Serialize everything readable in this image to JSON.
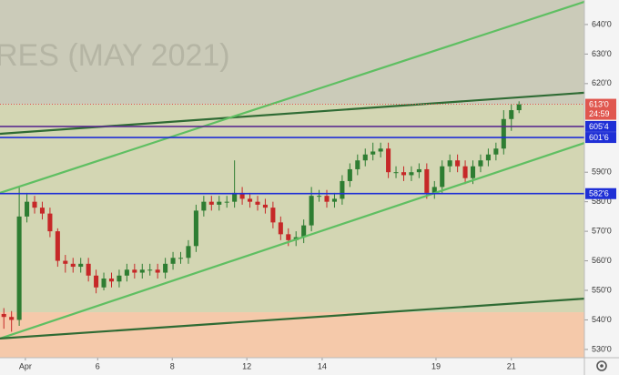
{
  "chart_data": {
    "type": "candlestick",
    "watermark": "RES (MAY 2021)",
    "xlim": [
      -0.5,
      75.5
    ],
    "xticks": [
      {
        "value": 2.8,
        "label": "Apr"
      },
      {
        "value": 12.2,
        "label": "6"
      },
      {
        "value": 21.9,
        "label": "8"
      },
      {
        "value": 31.6,
        "label": "12"
      },
      {
        "value": 41.4,
        "label": "14"
      },
      {
        "value": 56.2,
        "label": "19"
      },
      {
        "value": 66.0,
        "label": "21"
      }
    ],
    "ylim": [
      527.2,
      648.3
    ],
    "yticks": [
      {
        "value": 640,
        "label": "640'0"
      },
      {
        "value": 630,
        "label": "630'0"
      },
      {
        "value": 620,
        "label": "620'0"
      },
      {
        "value": 590,
        "label": "590'0"
      },
      {
        "value": 580,
        "label": "580'0"
      },
      {
        "value": 570,
        "label": "570'0"
      },
      {
        "value": 560,
        "label": "560'0"
      },
      {
        "value": 550,
        "label": "550'0"
      },
      {
        "value": 540,
        "label": "540'0"
      },
      {
        "value": 530,
        "label": "530'0"
      }
    ],
    "up_color": "#2e7d32",
    "down_color": "#c62828",
    "x": [
      0,
      1,
      2,
      3,
      4,
      5,
      6,
      7,
      8,
      9,
      10,
      11,
      12,
      13,
      14,
      15,
      16,
      17,
      18,
      19,
      20,
      21,
      22,
      23,
      24,
      25,
      26,
      27,
      28,
      29,
      30,
      31,
      32,
      33,
      34,
      35,
      36,
      37,
      38,
      39,
      40,
      41,
      42,
      43,
      44,
      45,
      46,
      47,
      48,
      49,
      50,
      51,
      52,
      53,
      54,
      55,
      56,
      57,
      58,
      59,
      60,
      61,
      62,
      63,
      64,
      65,
      66,
      67
    ],
    "open": [
      542,
      541,
      540,
      575,
      580,
      578,
      576,
      570,
      560,
      559,
      558,
      559,
      555,
      551,
      554,
      553,
      555,
      557,
      556,
      557,
      557,
      556,
      559,
      561,
      561,
      565,
      577,
      580,
      579,
      580,
      580,
      583,
      581,
      580,
      579,
      578,
      573,
      569,
      567,
      568,
      572,
      582,
      582,
      580,
      581,
      587,
      591,
      594,
      596,
      597,
      598,
      590,
      590,
      589,
      590,
      591,
      583,
      585,
      592,
      594,
      592,
      588,
      592,
      594,
      596,
      598,
      608,
      611
    ],
    "high": [
      544,
      543,
      585,
      583,
      582,
      580,
      578,
      571,
      562,
      561,
      561,
      561,
      557,
      556,
      556,
      557,
      559,
      559,
      559,
      559,
      559,
      561,
      563,
      563,
      567,
      579,
      582,
      582,
      582,
      582,
      594,
      585,
      583,
      582,
      581,
      580,
      575,
      571,
      570,
      574,
      585,
      584,
      584,
      583,
      589,
      593,
      596,
      598,
      600,
      600,
      600,
      592,
      592,
      592,
      593,
      593,
      587,
      594,
      596,
      596,
      594,
      594,
      596,
      598,
      600,
      611,
      613,
      614
    ],
    "low": [
      537,
      536,
      538,
      573,
      576,
      574,
      568,
      558,
      556,
      556,
      556,
      553,
      549,
      550,
      551,
      551,
      553,
      554,
      554,
      555,
      554,
      554,
      557,
      559,
      559,
      563,
      575,
      577,
      577,
      578,
      578,
      579,
      578,
      577,
      576,
      571,
      567,
      565,
      565,
      566,
      570,
      580,
      578,
      578,
      579,
      585,
      589,
      592,
      594,
      595,
      588,
      588,
      587,
      587,
      588,
      581,
      581,
      583,
      590,
      590,
      586,
      586,
      590,
      592,
      594,
      596,
      604,
      610
    ],
    "close": [
      541,
      540,
      575,
      580,
      578,
      576,
      570,
      560,
      559,
      558,
      559,
      555,
      551,
      554,
      553,
      555,
      557,
      556,
      557,
      557,
      556,
      559,
      561,
      561,
      565,
      577,
      580,
      579,
      580,
      580,
      583,
      581,
      580,
      579,
      578,
      573,
      569,
      567,
      568,
      572,
      582,
      582,
      580,
      581,
      587,
      591,
      594,
      596,
      597,
      598,
      590,
      590,
      589,
      590,
      591,
      583,
      585,
      592,
      594,
      592,
      588,
      592,
      594,
      596,
      598,
      608,
      611,
      613
    ],
    "zones": [
      {
        "from": 613,
        "to": 648.3,
        "color": "#cbcbb9"
      },
      {
        "from": 542.6,
        "to": 613,
        "color": "#d3d6b3"
      },
      {
        "from": 527.2,
        "to": 542.6,
        "color": "#f5c9aa"
      }
    ],
    "trendlines": [
      {
        "color": "#2f6b34",
        "values": [
          603.0,
          616.9
        ]
      },
      {
        "color": "#5fbf62",
        "values": [
          583.0,
          647.7
        ]
      },
      {
        "color": "#5fbf62",
        "values": [
          533.7,
          599.9
        ]
      },
      {
        "color": "#2f6b34",
        "values": [
          533.7,
          547.2
        ]
      }
    ],
    "levels": [
      {
        "value": 605.5,
        "label": "605'4",
        "color": "#5b2c8f"
      },
      {
        "value": 601.75,
        "label": "601'6",
        "color": "#1f2fd6"
      },
      {
        "value": 582.75,
        "label": "582'6",
        "color": "#1f2fd6"
      }
    ],
    "last_price": {
      "value": 613,
      "label": "613'0",
      "timer": "24:59",
      "color": "#e0574f"
    }
  }
}
